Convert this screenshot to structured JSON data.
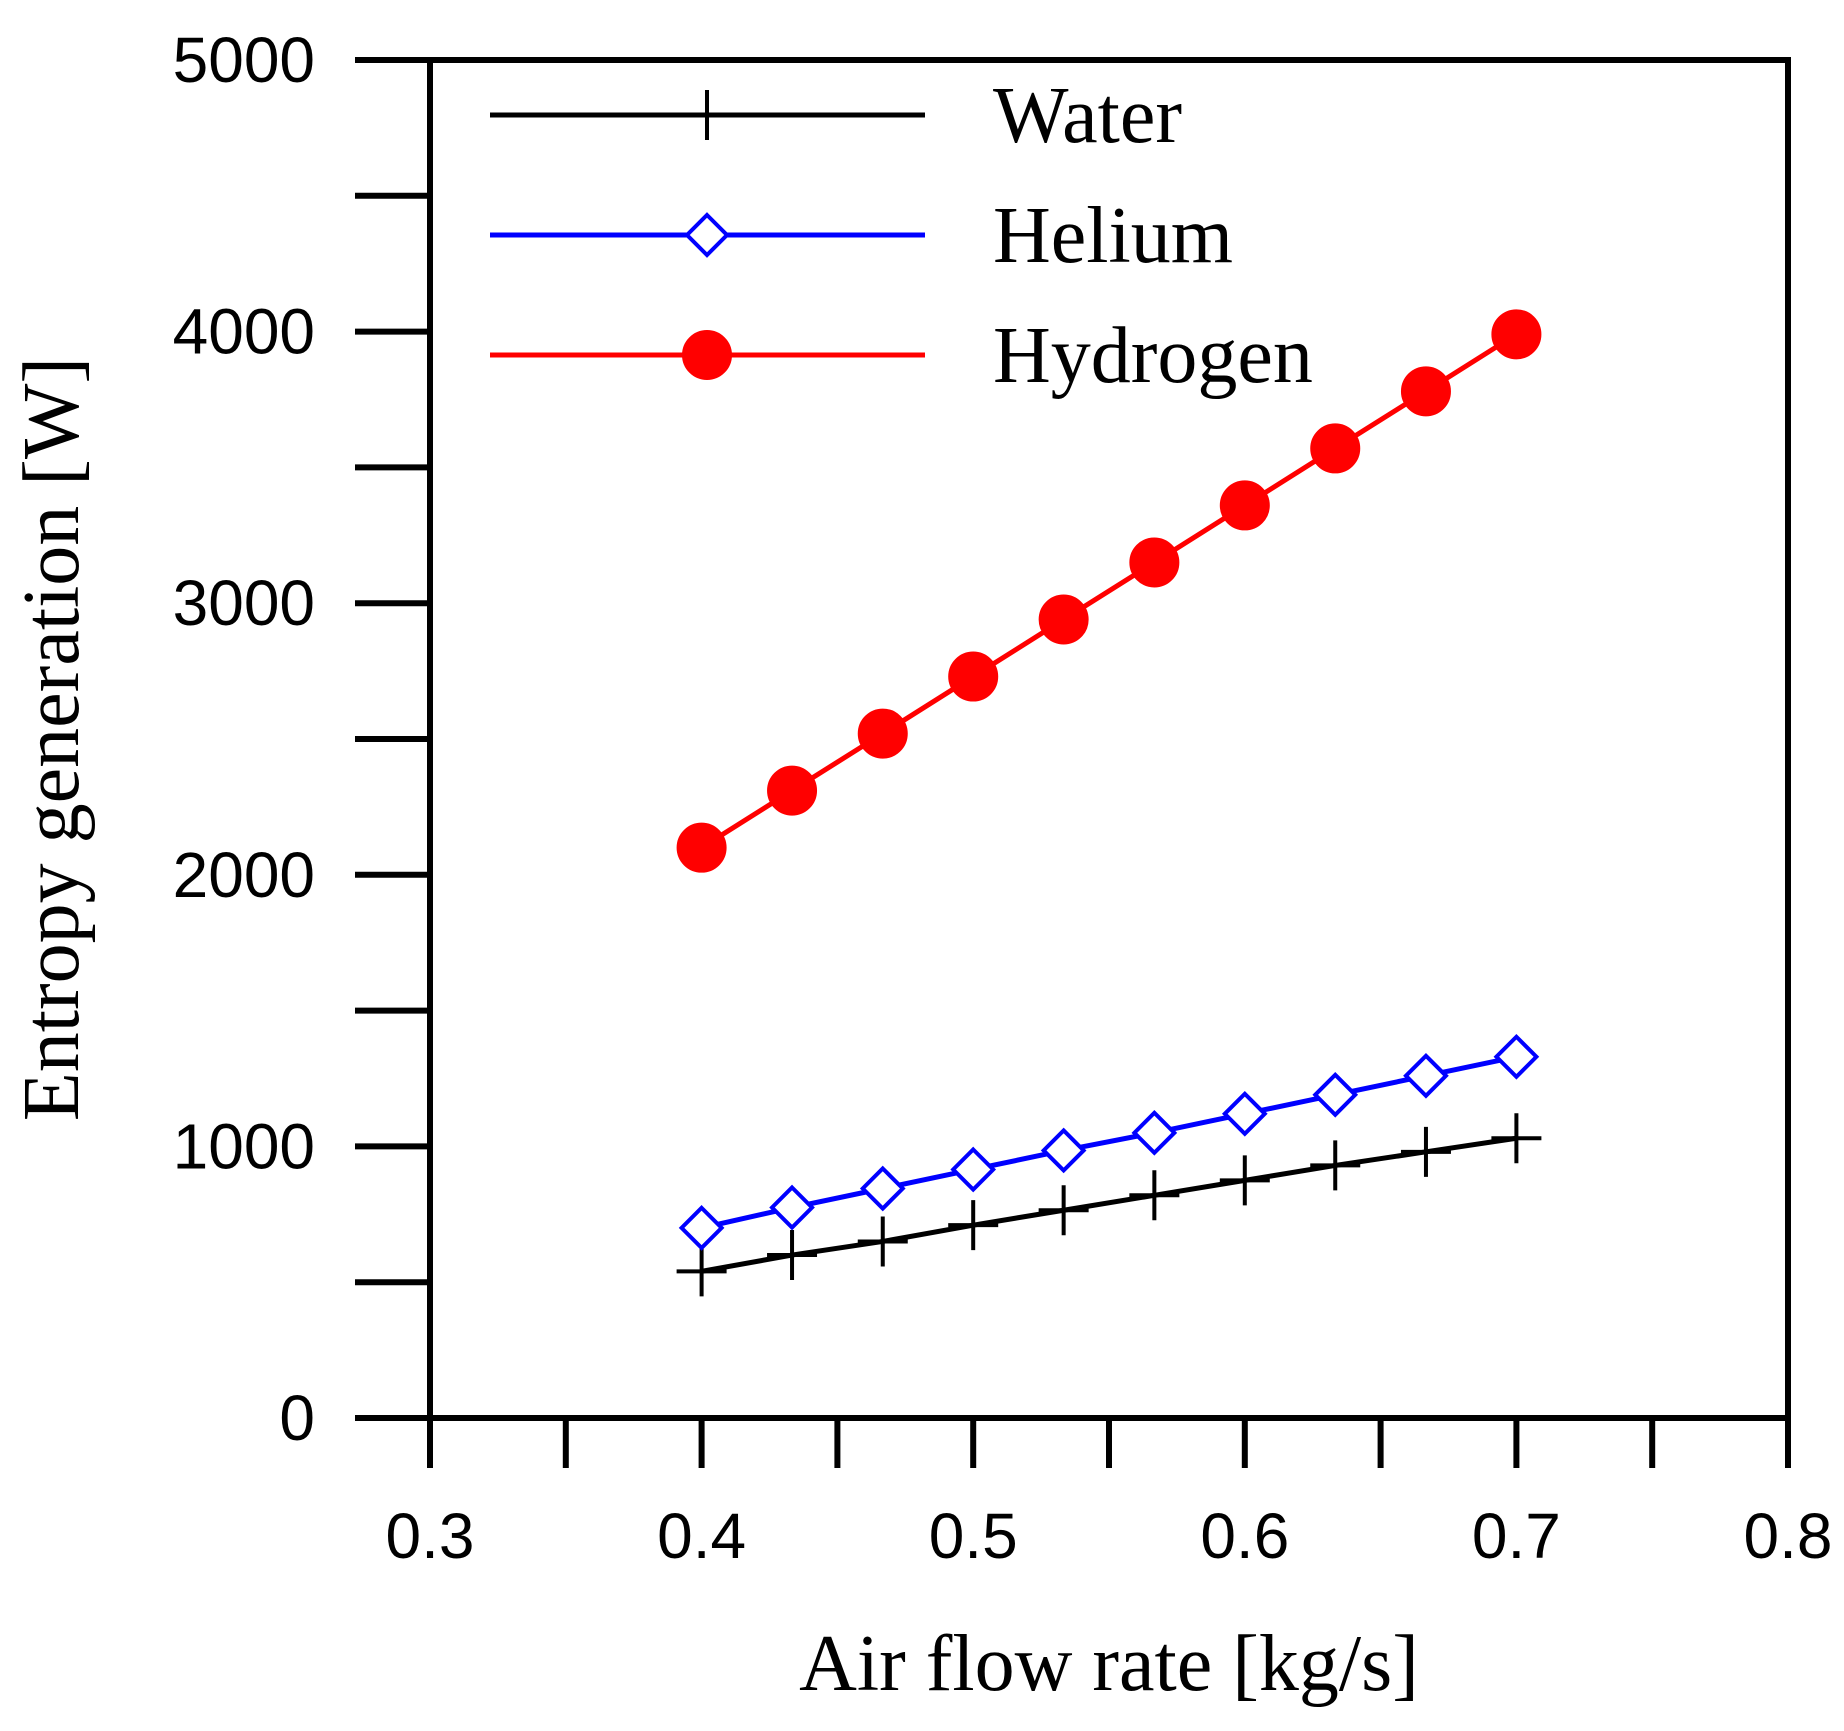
{
  "chart_data": {
    "type": "line",
    "title": "",
    "xlabel": "Air flow rate [kg/s]",
    "ylabel": "Entropy generation [W]",
    "xlim": [
      0.3,
      0.8
    ],
    "ylim": [
      0,
      5000
    ],
    "x_ticks": [
      0.3,
      0.4,
      0.5,
      0.6,
      0.7,
      0.8
    ],
    "x_tick_labels": [
      "0.3",
      "0.4",
      "0.5",
      "0.6",
      "0.7",
      "0.8"
    ],
    "y_ticks": [
      0,
      1000,
      2000,
      3000,
      4000,
      5000
    ],
    "y_tick_labels": [
      "0",
      "1000",
      "2000",
      "3000",
      "4000",
      "5000"
    ],
    "grid": false,
    "legend_position": "top-left",
    "x": [
      0.4,
      0.4333,
      0.4667,
      0.5,
      0.5333,
      0.5667,
      0.6,
      0.6333,
      0.6667,
      0.7
    ],
    "series": [
      {
        "name": "Water",
        "color": "#000000",
        "marker": "plus",
        "values": [
          540,
          600,
          650,
          710,
          765,
          820,
          875,
          930,
          980,
          1030
        ]
      },
      {
        "name": "Helium",
        "color": "#0000ff",
        "marker": "diamond-open",
        "values": [
          700,
          775,
          845,
          915,
          985,
          1050,
          1120,
          1190,
          1260,
          1330
        ]
      },
      {
        "name": "Hydrogen",
        "color": "#ff0000",
        "marker": "circle-filled",
        "values": [
          2100,
          2310,
          2520,
          2730,
          2940,
          3150,
          3360,
          3570,
          3780,
          3990
        ]
      }
    ]
  }
}
